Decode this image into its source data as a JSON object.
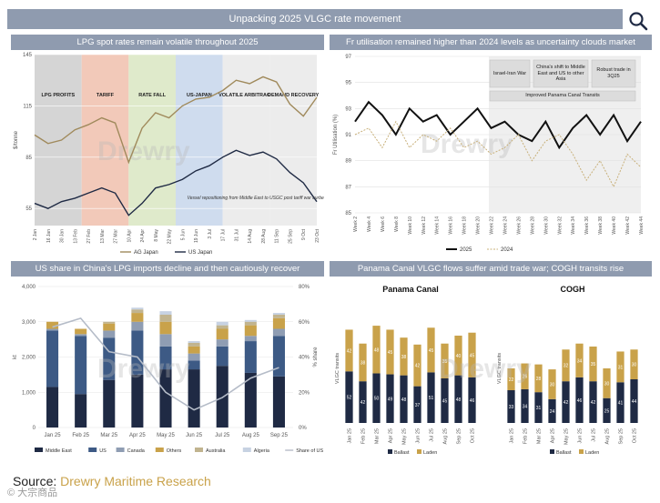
{
  "header": {
    "title": "Unpacking 2025 VLGC rate movement"
  },
  "source": {
    "label": "Source:",
    "org": "Drewry Maritime Research"
  },
  "watermark_text": "© 大宗商品",
  "brand_watermark": "Drewry",
  "colors": {
    "banner": "#8f9baf",
    "dark": "#1f2a44",
    "gold": "#c9a24a",
    "blue": "#3d5a85",
    "light": "#c7d2e2",
    "grey": "#a8a8a8"
  },
  "panels": {
    "p1": {
      "title": "LPG spot rates remain volatile throughout 2025"
    },
    "p2": {
      "title": "Fr utilisation remained higher than 2024 levels as uncertainty clouds market"
    },
    "p3": {
      "title": "US share in China's LPG imports decline and then cautiously recover"
    },
    "p4": {
      "title": "Panama Canal VLGC flows suffer amid trade war; COGH transits rise"
    }
  },
  "chart_data": [
    {
      "id": "lpg_spot_rates",
      "type": "line",
      "title": "LPG spot rates remain volatile throughout 2025",
      "ylabel": "$/tonne",
      "ylim": [
        45,
        145
      ],
      "yticks": [
        55,
        85,
        115,
        145
      ],
      "categories": [
        "2 Jan",
        "16 Jan",
        "30 Jan",
        "13 Feb",
        "27 Feb",
        "13 Mar",
        "27 Mar",
        "10 Apr",
        "24 Apr",
        "8 May",
        "22 May",
        "5 Jun",
        "19 Jun",
        "3 Jul",
        "17 Jul",
        "31 Jul",
        "14 Aug",
        "28 Aug",
        "11 Sep",
        "25 Sep",
        "9 Oct",
        "23 Oct"
      ],
      "series": [
        {
          "name": "AG Japan",
          "values": [
            98,
            93,
            95,
            101,
            104,
            108,
            105,
            82,
            102,
            111,
            108,
            115,
            119,
            120,
            124,
            130,
            128,
            132,
            129,
            116,
            109,
            120
          ]
        },
        {
          "name": "US Japan",
          "values": [
            58,
            55,
            59,
            61,
            64,
            67,
            64,
            51,
            58,
            67,
            69,
            72,
            77,
            80,
            85,
            89,
            86,
            88,
            84,
            76,
            70,
            59
          ]
        }
      ],
      "phases": [
        {
          "label": "LPG PROFITS",
          "color": "#d5d5d5"
        },
        {
          "label": "TARIFF",
          "color": "#f2c9b9"
        },
        {
          "label": "RATE FALL",
          "color": "#dfeacb"
        },
        {
          "label": "US-JAPAN",
          "color": "#cfdcee"
        },
        {
          "label": "VOLATILE ARBITRAGE",
          "color": "#ececec"
        },
        {
          "label": "DEMAND RECOVERY",
          "color": "#ececec"
        }
      ],
      "annotation": "Vessel repositioning from Middle East to USGC post tariff war curbed supply"
    },
    {
      "id": "fr_utilisation",
      "type": "line",
      "title": "Fr utilisation remained higher than 2024 levels as uncertainty clouds market",
      "ylabel": "Fr Utilisation (%)",
      "ylim": [
        85,
        97
      ],
      "yticks": [
        85,
        87,
        89,
        91,
        93,
        95,
        97
      ],
      "categories": [
        "Week 2",
        "Week 4",
        "Week 6",
        "Week 8",
        "Week 10",
        "Week 12",
        "Week 14",
        "Week 16",
        "Week 18",
        "Week 20",
        "Week 22",
        "Week 24",
        "Week 26",
        "Week 28",
        "Week 30",
        "Week 32",
        "Week 34",
        "Week 36",
        "Week 38",
        "Week 40",
        "Week 42",
        "Week 44"
      ],
      "series": [
        {
          "name": "2025",
          "values": [
            92,
            93.5,
            92.5,
            91,
            93,
            92,
            92.5,
            91,
            92,
            93,
            91.5,
            92,
            91,
            90.5,
            92,
            90,
            91.5,
            92.5,
            91,
            92.5,
            90.5,
            92
          ]
        },
        {
          "name": "2024",
          "values": [
            91,
            91.5,
            90,
            92,
            90,
            91,
            90.5,
            91.5,
            90,
            90.5,
            89.5,
            90,
            91,
            89,
            90.5,
            91,
            89.5,
            87.5,
            89,
            87,
            89.5,
            88.5
          ]
        }
      ],
      "annotations": [
        "Israel-Iran War",
        "China's shift to Middle East and US to other Asia",
        "Robust trade in 3Q25",
        "Improved Panama Canal Transits"
      ]
    },
    {
      "id": "china_lpg_imports",
      "type": "bar",
      "title": "US share in China's LPG imports decline and then cautiously recover",
      "ylabel": "kt",
      "y2label": "% share",
      "ylim": [
        0,
        4000
      ],
      "yticks": [
        0,
        1000,
        2000,
        3000,
        4000
      ],
      "y2lim": [
        0,
        80
      ],
      "y2ticks": [
        0,
        20,
        40,
        60,
        80
      ],
      "categories": [
        "Jan 25",
        "Feb 25",
        "Mar 25",
        "Apr 25",
        "May 25",
        "Jun 25",
        "Jul 25",
        "Aug 25",
        "Sep 25"
      ],
      "series": [
        {
          "name": "Middle East",
          "values": [
            1150,
            950,
            1350,
            1500,
            1650,
            1650,
            1750,
            1550,
            1450
          ]
        },
        {
          "name": "US",
          "values": [
            1600,
            1650,
            1200,
            1250,
            650,
            250,
            550,
            900,
            1150
          ]
        },
        {
          "name": "Canada",
          "values": [
            50,
            50,
            200,
            250,
            350,
            200,
            200,
            150,
            200
          ]
        },
        {
          "name": "Others",
          "values": [
            200,
            150,
            200,
            250,
            350,
            200,
            300,
            300,
            300
          ]
        },
        {
          "name": "Australia",
          "values": [
            0,
            0,
            50,
            100,
            200,
            100,
            100,
            100,
            100
          ]
        },
        {
          "name": "Algeria",
          "values": [
            0,
            0,
            0,
            50,
            100,
            50,
            100,
            50,
            50
          ]
        }
      ],
      "line_series": {
        "name": "Share of US",
        "values": [
          57,
          62,
          43,
          40,
          20,
          10,
          17,
          28,
          34
        ]
      }
    },
    {
      "id": "panama_canal",
      "type": "bar",
      "title": "Panama Canal",
      "ylabel": "VLGC transits",
      "categories": [
        "Jan 25",
        "Feb 25",
        "Mar 25",
        "Apr 25",
        "May 25",
        "Jun 25",
        "Jul 25",
        "Aug 25",
        "Sep 25",
        "Oct 25"
      ],
      "series": [
        {
          "name": "Ballast",
          "values": [
            52,
            42,
            50,
            49,
            48,
            37,
            51,
            45,
            48,
            46
          ]
        },
        {
          "name": "Laden",
          "values": [
            42,
            38,
            48,
            45,
            38,
            42,
            45,
            35,
            40,
            45
          ]
        }
      ]
    },
    {
      "id": "cogh",
      "type": "bar",
      "title": "COGH",
      "ylabel": "VLGC transits",
      "categories": [
        "Jan 25",
        "Feb 25",
        "Mar 25",
        "Apr 25",
        "May 25",
        "Jun 25",
        "Jul 25",
        "Aug 25",
        "Sep 25",
        "Oct 25"
      ],
      "series": [
        {
          "name": "Ballast",
          "values": [
            33,
            34,
            31,
            24,
            42,
            46,
            42,
            25,
            41,
            44
          ]
        },
        {
          "name": "Laden",
          "values": [
            22,
            26,
            28,
            30,
            32,
            34,
            35,
            30,
            31,
            30
          ]
        }
      ]
    }
  ]
}
